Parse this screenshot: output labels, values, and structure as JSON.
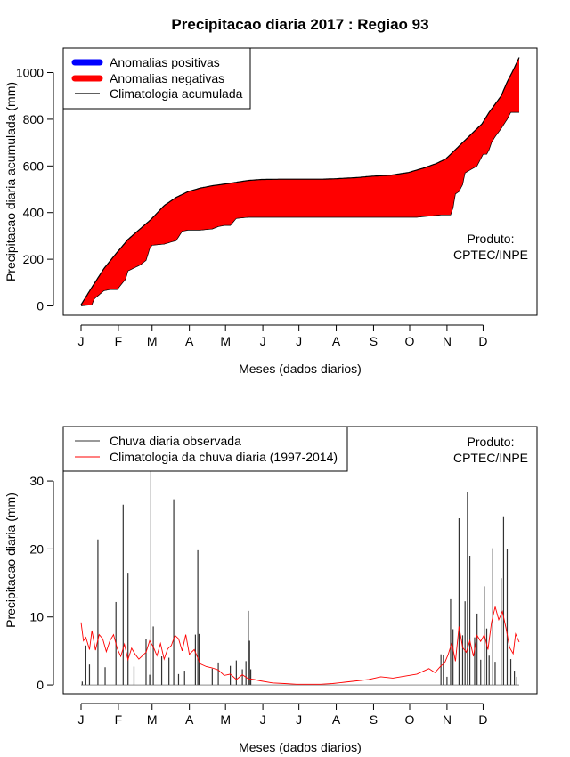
{
  "title": "Precipitacao diaria 2017 : Regiao 93",
  "colors": {
    "positive": "#0000ff",
    "negative": "#ff0000",
    "climatology_line": "#000000",
    "observed": "#333333",
    "clim_daily": "#ff0000"
  },
  "chart_data": [
    {
      "type": "area",
      "id": "cumulative",
      "ylabel": "Precipitacao diaria acumulada (mm)",
      "xlabel": "Meses (dados diarios)",
      "xticks": [
        "J",
        "F",
        "M",
        "A",
        "M",
        "J",
        "J",
        "A",
        "S",
        "O",
        "N",
        "D"
      ],
      "yticks": [
        0,
        200,
        400,
        600,
        800,
        1000
      ],
      "ylim": [
        -40,
        1105
      ],
      "legend": [
        "Anomalias positivas",
        "Anomalias negativas",
        "Climatologia acumulada"
      ],
      "product_lines": [
        "Produto:",
        "CPTEC/INPE"
      ],
      "climatology_cumulative": {
        "day": [
          1,
          10,
          20,
          31,
          40,
          50,
          59,
          70,
          80,
          90,
          100,
          110,
          120,
          130,
          140,
          151,
          165,
          181,
          200,
          212,
          230,
          243,
          258,
          273,
          285,
          296,
          304,
          310,
          318,
          325,
          334,
          340,
          350,
          355,
          360,
          365
        ],
        "value": [
          5,
          80,
          160,
          230,
          285,
          330,
          370,
          430,
          465,
          490,
          505,
          515,
          522,
          530,
          538,
          542,
          543,
          543,
          543,
          545,
          550,
          556,
          560,
          572,
          590,
          610,
          630,
          660,
          700,
          735,
          780,
          830,
          900,
          960,
          1010,
          1065
        ]
      },
      "observed_cumulative": {
        "day": [
          1,
          10,
          12,
          20,
          25,
          31,
          38,
          40,
          50,
          55,
          58,
          60,
          70,
          80,
          85,
          90,
          100,
          110,
          115,
          120,
          125,
          130,
          140,
          150,
          160,
          170,
          200,
          240,
          280,
          300,
          303,
          305,
          308,
          310,
          312,
          315,
          318,
          320,
          330,
          335,
          338,
          340,
          342,
          345,
          350,
          355,
          358,
          360,
          365
        ],
        "value": [
          0,
          5,
          30,
          65,
          70,
          70,
          115,
          150,
          175,
          195,
          245,
          260,
          265,
          280,
          320,
          325,
          325,
          330,
          340,
          345,
          345,
          375,
          380,
          380,
          380,
          380,
          380,
          380,
          380,
          390,
          390,
          390,
          390,
          420,
          480,
          490,
          520,
          570,
          600,
          650,
          650,
          670,
          700,
          725,
          760,
          800,
          830,
          830,
          830
        ]
      }
    },
    {
      "type": "bar",
      "id": "daily",
      "ylabel": "Precipitacao diaria (mm)",
      "xlabel": "Meses (dados diarios)",
      "xticks": [
        "J",
        "F",
        "M",
        "A",
        "M",
        "J",
        "J",
        "A",
        "S",
        "O",
        "N",
        "D"
      ],
      "yticks": [
        0,
        10,
        20,
        30
      ],
      "ylim": [
        -1.3,
        38
      ],
      "legend": [
        "Chuva diaria observada",
        "Climatologia da chuva diaria (1997-2014)"
      ],
      "product_lines": [
        "Produto:",
        "CPTEC/INPE"
      ],
      "observed_peaks": {
        "day": [
          2,
          5,
          8,
          15,
          21,
          30,
          36,
          40,
          45,
          55,
          58,
          59,
          61,
          68,
          74,
          78,
          82,
          87,
          96,
          98,
          99,
          110,
          115,
          125,
          130,
          135,
          138,
          140,
          141,
          142,
          300,
          302,
          305,
          308,
          310,
          315,
          318,
          320,
          322,
          324,
          328,
          330,
          333,
          336,
          338,
          340,
          343,
          345,
          350,
          352,
          355,
          358,
          361,
          363
        ],
        "value": [
          0.5,
          5.8,
          3,
          21.4,
          2.6,
          12.2,
          26.5,
          16.5,
          2.7,
          6.8,
          1.5,
          32.5,
          8.6,
          4.2,
          4,
          27.3,
          1.6,
          2.1,
          7.4,
          19.8,
          7.5,
          2.4,
          3.3,
          2.8,
          3.6,
          2.3,
          3.5,
          10.9,
          6.5,
          2.3,
          4.5,
          4.4,
          1.2,
          12.6,
          8.2,
          24.5,
          7.3,
          12.3,
          28.3,
          19,
          7,
          10.5,
          3.7,
          14.5,
          8.3,
          4.3,
          20.1,
          3.4,
          15.7,
          24.8,
          20,
          3.8,
          2.1,
          1.2
        ]
      },
      "climatology_daily": {
        "day": [
          1,
          3,
          5,
          8,
          10,
          13,
          16,
          19,
          22,
          25,
          28,
          31,
          34,
          37,
          40,
          43,
          46,
          49,
          52,
          55,
          58,
          61,
          64,
          67,
          70,
          73,
          76,
          79,
          82,
          85,
          88,
          91,
          95,
          100,
          105,
          110,
          115,
          120,
          125,
          130,
          135,
          140,
          145,
          150,
          160,
          170,
          180,
          190,
          200,
          210,
          220,
          230,
          240,
          250,
          260,
          270,
          280,
          290,
          295,
          300,
          303,
          306,
          309,
          312,
          315,
          318,
          321,
          324,
          327,
          330,
          333,
          336,
          339,
          342,
          345,
          348,
          351,
          354,
          357,
          360,
          362,
          365
        ],
        "value": [
          9.2,
          6.5,
          7,
          5.2,
          8,
          5.1,
          7.4,
          6.8,
          4.9,
          6.5,
          7.4,
          5.4,
          4.2,
          6,
          3.7,
          5.4,
          4.5,
          3.8,
          4.3,
          4.8,
          6.5,
          5.6,
          4.3,
          6.1,
          3.8,
          5.3,
          5.8,
          7.3,
          6.8,
          5,
          7.4,
          4.5,
          5.2,
          3.1,
          2.7,
          2.5,
          2.2,
          1.4,
          1.6,
          0.8,
          1.5,
          0.9,
          0.8,
          0.6,
          0.3,
          0.2,
          0.1,
          0.1,
          0.1,
          0.2,
          0.4,
          0.6,
          0.8,
          1.2,
          1.0,
          1.3,
          1.6,
          2.4,
          1.8,
          2.8,
          3.2,
          4.5,
          6.2,
          3.5,
          8.6,
          5.5,
          4.8,
          6.5,
          4.2,
          7.3,
          6.4,
          7.4,
          5.2,
          9.2,
          11.5,
          9.6,
          10.8,
          8.4,
          5.5,
          4.6,
          7.5,
          6.3
        ]
      }
    }
  ]
}
